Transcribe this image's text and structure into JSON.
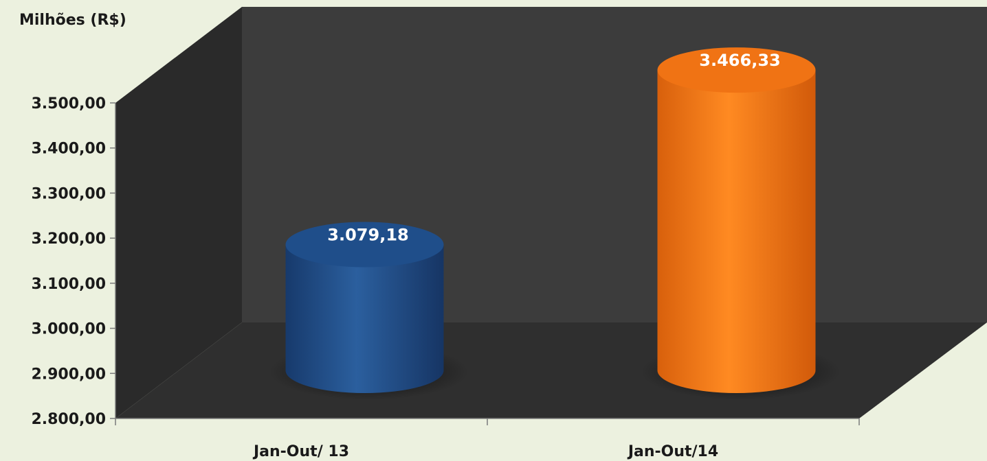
{
  "chart_data": {
    "type": "bar",
    "unit_label": "Milhões (R$)",
    "categories": [
      "Jan-Out/ 13",
      "Jan-Out/14"
    ],
    "values": [
      3079.18,
      3466.33
    ],
    "data_labels": [
      "3.079,18",
      "3.466,33"
    ],
    "ylim": [
      2800,
      3500
    ],
    "yticks": [
      2800,
      2900,
      3000,
      3100,
      3200,
      3300,
      3400,
      3500
    ],
    "ytick_labels": [
      "2.800,00",
      "2.900,00",
      "3.000,00",
      "3.100,00",
      "3.200,00",
      "3.300,00",
      "3.400,00",
      "3.500,00"
    ],
    "bar_colors": [
      "#1f4e8a",
      "#f07314"
    ],
    "grid": false,
    "legend": false
  },
  "colors": {
    "background": "#ecf1df",
    "back_wall": "#3c3c3c",
    "side_wall": "#2a2a2a",
    "floor": "#2f2f2f"
  }
}
